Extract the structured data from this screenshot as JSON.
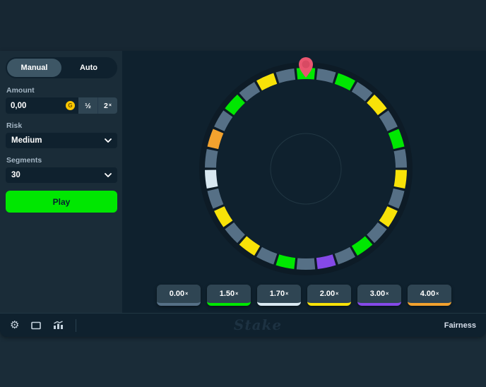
{
  "page": {
    "bg": "#1a2c38",
    "top_band_bg": "#172733",
    "canvas_bg": "#0f212e"
  },
  "sidebar": {
    "mode_tabs": {
      "manual_label": "Manual",
      "auto_label": "Auto"
    },
    "amount_label": "Amount",
    "amount_value": "0,00",
    "coin_letter": "G",
    "coin_color": "#fdc700",
    "half_button_label": "½",
    "double_button_base": "2",
    "times_symbol": "×",
    "risk_label": "Risk",
    "risk_value": "Medium",
    "segments_label": "Segments",
    "segments_value": "30",
    "play_label": "Play",
    "play_color": "#00e701"
  },
  "wheel": {
    "pointer_color": "#ea5670",
    "pointer_inner_color": "#d84a63",
    "track_color": "#0d1b26",
    "center_ring_color": "#213743",
    "palette": {
      "gray": "#567086",
      "green": "#00e701",
      "yellow": "#f8e208",
      "white": "#d9e8f1",
      "purple": "#8549e8",
      "orange": "#f2a22e"
    },
    "segment_colors": [
      "green",
      "gray",
      "green",
      "gray",
      "yellow",
      "gray",
      "green",
      "gray",
      "yellow",
      "gray",
      "yellow",
      "gray",
      "green",
      "gray",
      "purple",
      "gray",
      "green",
      "gray",
      "yellow",
      "gray",
      "yellow",
      "gray",
      "white",
      "gray",
      "orange",
      "gray",
      "green",
      "gray",
      "yellow",
      "gray"
    ]
  },
  "results": [
    {
      "value": "0.00",
      "times": "×",
      "accent": "#567086"
    },
    {
      "value": "1.50",
      "times": "×",
      "accent": "#00e701"
    },
    {
      "value": "1.70",
      "times": "×",
      "accent": "#d9e8f1"
    },
    {
      "value": "2.00",
      "times": "×",
      "accent": "#f8e208"
    },
    {
      "value": "3.00",
      "times": "×",
      "accent": "#8549e8"
    },
    {
      "value": "4.00",
      "times": "×",
      "accent": "#f2a22e"
    }
  ],
  "footer": {
    "icons": [
      {
        "name": "settings-gear-icon",
        "glyph": "⚙"
      },
      {
        "name": "theatre-mode-icon"
      },
      {
        "name": "live-stats-icon"
      }
    ],
    "logo_text": "Stake",
    "fairness_label": "Fairness"
  }
}
